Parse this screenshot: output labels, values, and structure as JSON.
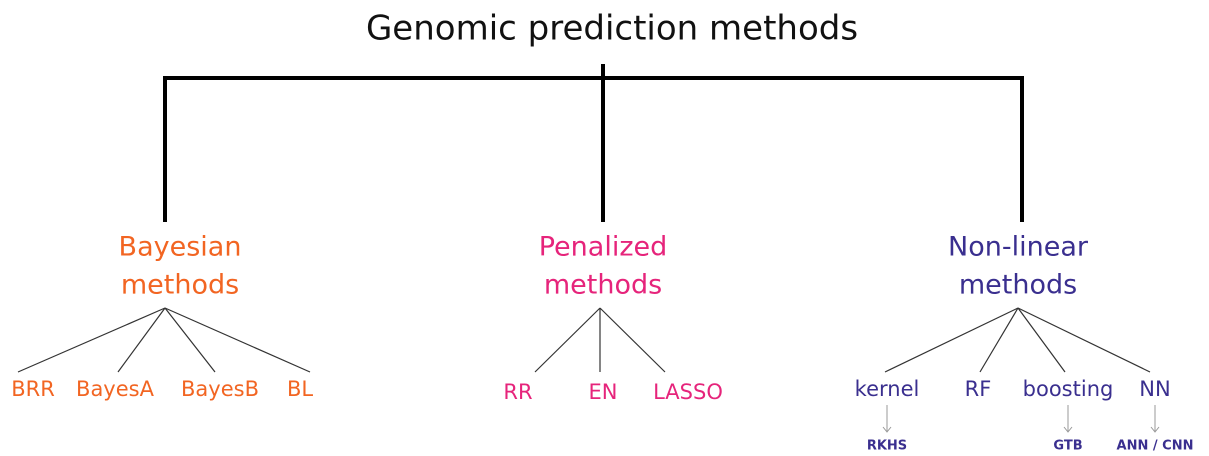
{
  "title": "Genomic prediction methods",
  "groups": [
    {
      "label": [
        "Bayesian",
        "methods"
      ],
      "children": [
        {
          "label": "BRR"
        },
        {
          "label": "BayesA"
        },
        {
          "label": "BayesB"
        },
        {
          "label": "BL"
        }
      ]
    },
    {
      "label": [
        "Penalized",
        "methods"
      ],
      "children": [
        {
          "label": "RR"
        },
        {
          "label": "EN"
        },
        {
          "label": "LASSO"
        }
      ]
    },
    {
      "label": [
        "Non-linear",
        "methods"
      ],
      "children": [
        {
          "label": "kernel",
          "sub": "RKHS"
        },
        {
          "label": "RF"
        },
        {
          "label": "boosting",
          "sub": "GTB"
        },
        {
          "label": "NN",
          "sub": "ANN / CNN"
        }
      ]
    }
  ]
}
